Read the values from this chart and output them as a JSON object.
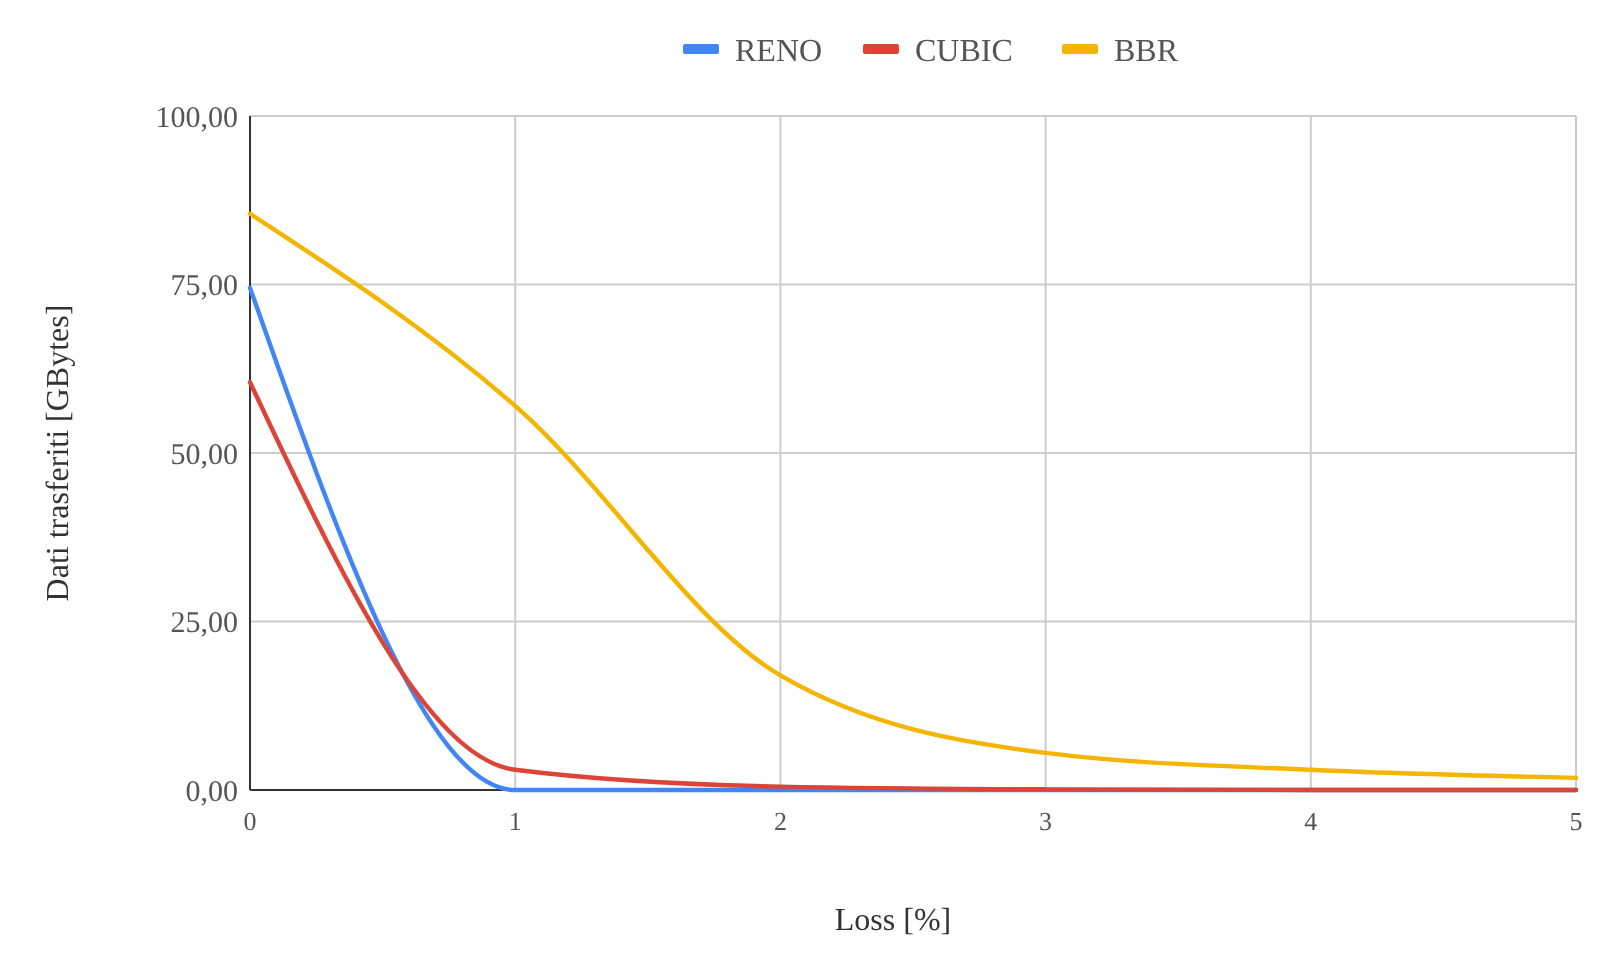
{
  "chart_data": {
    "type": "line",
    "xlabel": "Loss [%]",
    "ylabel": "Dati trasferiti [GBytes]",
    "x": [
      0,
      1,
      2,
      3,
      4,
      5
    ],
    "series": [
      {
        "name": "RENO",
        "color": "#4285f4",
        "values": [
          74.5,
          0,
          0,
          0,
          0,
          0
        ]
      },
      {
        "name": "CUBIC",
        "color": "#db4437",
        "values": [
          60.5,
          3,
          0.5,
          0.1,
          0,
          0
        ]
      },
      {
        "name": "BBR",
        "color": "#f4b400",
        "values": [
          85.5,
          57,
          17,
          5.5,
          3,
          1.8
        ]
      }
    ],
    "xlim": [
      0,
      5
    ],
    "xticks": [
      0,
      1,
      2,
      3,
      4,
      5
    ],
    "ylim": [
      0,
      100
    ],
    "yticks": [
      {
        "value": 0,
        "label": "0,00"
      },
      {
        "value": 25,
        "label": "25,00"
      },
      {
        "value": 50,
        "label": "50,00"
      },
      {
        "value": 75,
        "label": "75,00"
      },
      {
        "value": 100,
        "label": "100,00"
      }
    ],
    "grid": true,
    "legend": "top",
    "marker": "none",
    "line_style": "solid"
  }
}
